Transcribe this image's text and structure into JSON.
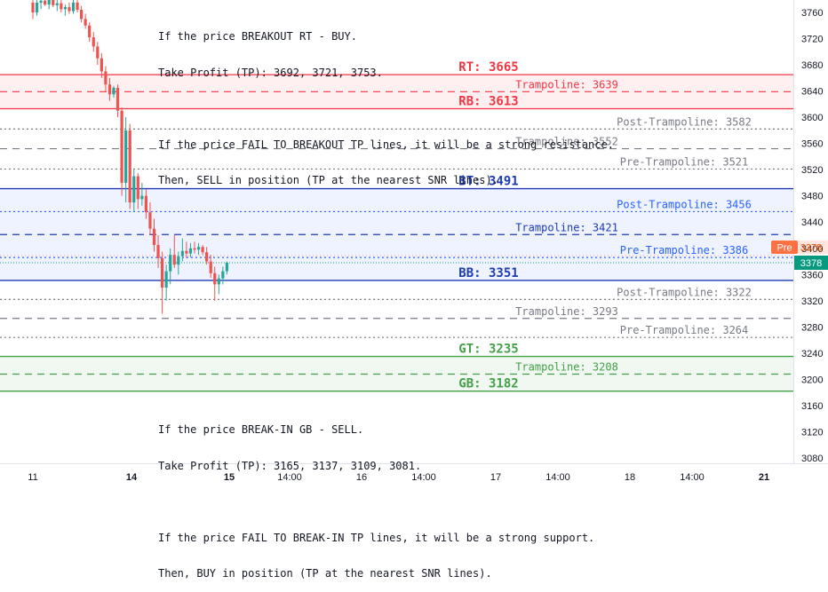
{
  "chart_data": {
    "type": "candlestick",
    "y_ticks": [
      3760,
      3720,
      3680,
      3640,
      3600,
      3560,
      3520,
      3480,
      3440,
      3400,
      3360,
      3320,
      3280,
      3240,
      3200,
      3160,
      3120,
      3080
    ],
    "ylim": [
      3065,
      3785
    ],
    "x_ticks": [
      "11",
      "14",
      "15",
      "14:00",
      "16",
      "14:00",
      "17",
      "14:00",
      "18",
      "14:00",
      "21"
    ],
    "price_label": "3378",
    "pre_label": "Pre",
    "pre_price": "3378",
    "zones": [
      {
        "name": "RT-RB zone",
        "top": 3665,
        "bottom": 3613,
        "color": "#f23645"
      },
      {
        "name": "BT-BB zone",
        "top": 3491,
        "bottom": 3351,
        "color": "#2962ff"
      },
      {
        "name": "GT-GB zone",
        "top": 3235,
        "bottom": 3182,
        "color": "#43a047"
      }
    ],
    "levels": [
      {
        "label": "RT: 3665",
        "value": 3665,
        "style": "solid",
        "color": "#f23645",
        "pos": "center",
        "bold": true
      },
      {
        "label": "Trampoline: 3639",
        "value": 3639,
        "style": "dashed",
        "color": "#f23645",
        "pos": "mid"
      },
      {
        "label": "RB: 3613",
        "value": 3613,
        "style": "solid",
        "color": "#f23645",
        "pos": "center",
        "bold": true
      },
      {
        "label": "Post-Trampoline: 3582",
        "value": 3582,
        "style": "dotted",
        "color": "#787b86",
        "pos": "right"
      },
      {
        "label": "Trampoline: 3552",
        "value": 3552,
        "style": "dashed",
        "color": "#787b86",
        "pos": "mid"
      },
      {
        "label": "Pre-Trampoline: 3521",
        "value": 3521,
        "style": "dotted",
        "color": "#787b86",
        "pos": "right"
      },
      {
        "label": "BT: 3491",
        "value": 3491,
        "style": "solid",
        "color": "#1e3bb3",
        "pos": "center",
        "bold": true
      },
      {
        "label": "Post-Trampoline: 3456",
        "value": 3456,
        "style": "dotted",
        "color": "#2962ff",
        "pos": "right"
      },
      {
        "label": "Trampoline: 3421",
        "value": 3421,
        "style": "dashed",
        "color": "#1e3bb3",
        "pos": "mid"
      },
      {
        "label": "Pre-Trampoline: 3386",
        "value": 3386,
        "style": "dotted",
        "color": "#2962ff",
        "pos": "right"
      },
      {
        "label": "BB: 3351",
        "value": 3351,
        "style": "solid",
        "color": "#1e3bb3",
        "pos": "center",
        "bold": true
      },
      {
        "label": "Post-Trampoline: 3322",
        "value": 3322,
        "style": "dotted",
        "color": "#787b86",
        "pos": "right"
      },
      {
        "label": "Trampoline: 3293",
        "value": 3293,
        "style": "dashed",
        "color": "#787b86",
        "pos": "mid"
      },
      {
        "label": "Pre-Trampoline: 3264",
        "value": 3264,
        "style": "dotted",
        "color": "#787b86",
        "pos": "right"
      },
      {
        "label": "GT: 3235",
        "value": 3235,
        "style": "solid",
        "color": "#43a047",
        "pos": "center",
        "bold": true
      },
      {
        "label": "Trampoline: 3208",
        "value": 3208,
        "style": "dashed",
        "color": "#43a047",
        "pos": "mid"
      },
      {
        "label": "GB: 3182",
        "value": 3182,
        "style": "solid",
        "color": "#43a047",
        "pos": "center",
        "bold": true
      }
    ],
    "candles": [
      {
        "o": 3775,
        "h": 3790,
        "l": 3750,
        "c": 3760
      },
      {
        "o": 3760,
        "h": 3780,
        "l": 3755,
        "c": 3775
      },
      {
        "o": 3775,
        "h": 3785,
        "l": 3765,
        "c": 3778
      },
      {
        "o": 3778,
        "h": 3790,
        "l": 3770,
        "c": 3772
      },
      {
        "o": 3772,
        "h": 3783,
        "l": 3765,
        "c": 3779
      },
      {
        "o": 3779,
        "h": 3788,
        "l": 3768,
        "c": 3771
      },
      {
        "o": 3771,
        "h": 3780,
        "l": 3762,
        "c": 3774
      },
      {
        "o": 3774,
        "h": 3782,
        "l": 3760,
        "c": 3765
      },
      {
        "o": 3765,
        "h": 3772,
        "l": 3755,
        "c": 3768
      },
      {
        "o": 3768,
        "h": 3775,
        "l": 3758,
        "c": 3762
      },
      {
        "o": 3762,
        "h": 3780,
        "l": 3758,
        "c": 3775
      },
      {
        "o": 3775,
        "h": 3782,
        "l": 3760,
        "c": 3764
      },
      {
        "o": 3764,
        "h": 3770,
        "l": 3745,
        "c": 3750
      },
      {
        "o": 3750,
        "h": 3758,
        "l": 3735,
        "c": 3740
      },
      {
        "o": 3740,
        "h": 3745,
        "l": 3715,
        "c": 3722
      },
      {
        "o": 3722,
        "h": 3730,
        "l": 3700,
        "c": 3708
      },
      {
        "o": 3708,
        "h": 3715,
        "l": 3680,
        "c": 3690
      },
      {
        "o": 3690,
        "h": 3698,
        "l": 3660,
        "c": 3670
      },
      {
        "o": 3670,
        "h": 3678,
        "l": 3640,
        "c": 3650
      },
      {
        "o": 3650,
        "h": 3660,
        "l": 3625,
        "c": 3635
      },
      {
        "o": 3635,
        "h": 3648,
        "l": 3630,
        "c": 3645
      },
      {
        "o": 3645,
        "h": 3650,
        "l": 3600,
        "c": 3610
      },
      {
        "o": 3610,
        "h": 3615,
        "l": 3480,
        "c": 3500
      },
      {
        "o": 3500,
        "h": 3600,
        "l": 3470,
        "c": 3580
      },
      {
        "o": 3580,
        "h": 3590,
        "l": 3460,
        "c": 3470
      },
      {
        "o": 3470,
        "h": 3520,
        "l": 3455,
        "c": 3510
      },
      {
        "o": 3510,
        "h": 3515,
        "l": 3460,
        "c": 3475
      },
      {
        "o": 3475,
        "h": 3500,
        "l": 3465,
        "c": 3480
      },
      {
        "o": 3480,
        "h": 3490,
        "l": 3445,
        "c": 3455
      },
      {
        "o": 3455,
        "h": 3470,
        "l": 3420,
        "c": 3430
      },
      {
        "o": 3430,
        "h": 3445,
        "l": 3395,
        "c": 3405
      },
      {
        "o": 3405,
        "h": 3420,
        "l": 3370,
        "c": 3385
      },
      {
        "o": 3385,
        "h": 3395,
        "l": 3300,
        "c": 3340
      },
      {
        "o": 3340,
        "h": 3375,
        "l": 3320,
        "c": 3365
      },
      {
        "o": 3365,
        "h": 3400,
        "l": 3345,
        "c": 3390
      },
      {
        "o": 3390,
        "h": 3420,
        "l": 3370,
        "c": 3375
      },
      {
        "o": 3375,
        "h": 3395,
        "l": 3360,
        "c": 3388
      },
      {
        "o": 3388,
        "h": 3415,
        "l": 3380,
        "c": 3396
      },
      {
        "o": 3396,
        "h": 3410,
        "l": 3385,
        "c": 3392
      },
      {
        "o": 3392,
        "h": 3408,
        "l": 3386,
        "c": 3400
      },
      {
        "o": 3400,
        "h": 3410,
        "l": 3392,
        "c": 3398
      },
      {
        "o": 3398,
        "h": 3408,
        "l": 3390,
        "c": 3402
      },
      {
        "o": 3402,
        "h": 3405,
        "l": 3390,
        "c": 3394
      },
      {
        "o": 3394,
        "h": 3402,
        "l": 3375,
        "c": 3380
      },
      {
        "o": 3380,
        "h": 3390,
        "l": 3355,
        "c": 3362
      },
      {
        "o": 3362,
        "h": 3372,
        "l": 3320,
        "c": 3345
      },
      {
        "o": 3345,
        "h": 3360,
        "l": 3330,
        "c": 3354
      },
      {
        "o": 3354,
        "h": 3372,
        "l": 3345,
        "c": 3365
      },
      {
        "o": 3365,
        "h": 3380,
        "l": 3360,
        "c": 3378
      }
    ]
  },
  "notes": {
    "top": [
      "If the price BREAKOUT RT - BUY.",
      "Take Profit (TP): 3692, 3721, 3753.",
      "",
      "If the price FAIL TO BREAKOUT TP lines, it will be a strong resistance.",
      "Then, SELL in position (TP at the nearest SNR lines)."
    ],
    "bottom": [
      "If the price BREAK-IN GB - SELL.",
      "Take Profit (TP): 3165, 3137, 3109, 3081.",
      "",
      "If the price FAIL TO BREAK-IN TP lines, it will be a strong support.",
      "Then, BUY in position (TP at the nearest SNR lines)."
    ]
  }
}
